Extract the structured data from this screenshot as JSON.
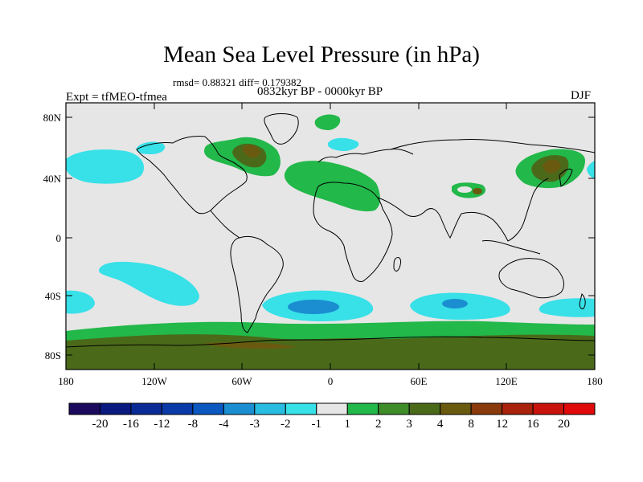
{
  "title": "Mean Sea Level Pressure (in hPa)",
  "stats": "rmsd= 0.88321 diff= 0.179382",
  "period": "0832kyr BP - 0000kyr BP",
  "experiment": "Expt = tfMEO-tfmea",
  "season": "DJF",
  "lat_labels": [
    "80N",
    "40N",
    "0",
    "40S",
    "80S"
  ],
  "lon_labels": [
    "180",
    "120W",
    "60W",
    "0",
    "60E",
    "120E",
    "180"
  ],
  "colorbar": {
    "labels": [
      "-20",
      "-16",
      "-12",
      "-8",
      "-4",
      "-3",
      "-2",
      "-1",
      "1",
      "2",
      "3",
      "4",
      "8",
      "12",
      "16",
      "20"
    ],
    "colors": [
      "#1b0a5e",
      "#0b1a80",
      "#0a2a96",
      "#0a3aa8",
      "#0a58c0",
      "#1a8ed0",
      "#28bce0",
      "#38e0e8",
      "#e6e6e6",
      "#22b84a",
      "#3f8c2a",
      "#4a6a1a",
      "#6a5a10",
      "#8a3a0c",
      "#a8220c",
      "#c8140c",
      "#e00a0a"
    ]
  },
  "colors": {
    "background_field": "#e6e6e6",
    "cyan": "#38e0e8",
    "light_blue": "#28bce0",
    "mid_blue": "#1a8ed0",
    "green": "#22b84a",
    "dark_green": "#3f8c2a",
    "olive": "#4a6a1a",
    "brown": "#6a5a10"
  }
}
